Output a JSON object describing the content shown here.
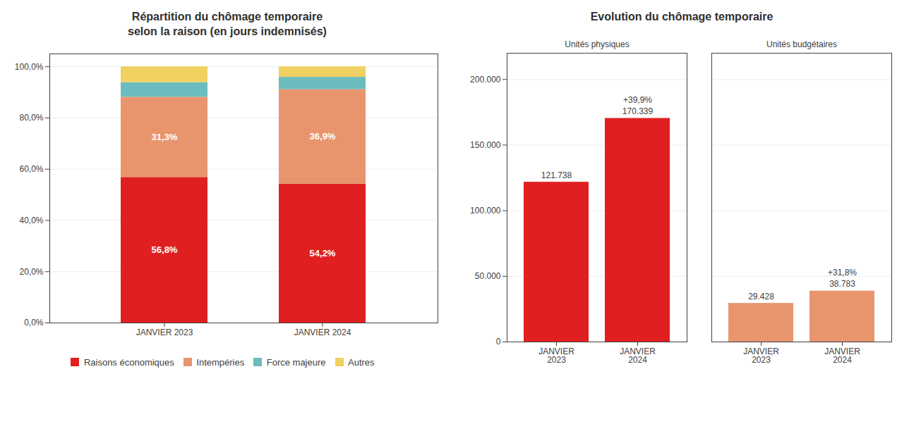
{
  "chart_data": [
    {
      "type": "bar",
      "stacked": true,
      "title": "Répartition du chômage temporaire\nselon la raison (en jours indemnisés)",
      "categories": [
        "JANVIER 2023",
        "JANVIER 2024"
      ],
      "series": [
        {
          "name": "Raisons économiques",
          "color": "#e02020",
          "values": [
            56.8,
            54.2
          ],
          "value_labels": [
            "56,8%",
            "54,2%"
          ]
        },
        {
          "name": "Intempéries",
          "color": "#e8956d",
          "values": [
            31.3,
            36.9
          ],
          "value_labels": [
            "31,3%",
            "36,9%"
          ]
        },
        {
          "name": "Force majeure",
          "color": "#6bbcbc",
          "values": [
            5.7,
            4.8
          ]
        },
        {
          "name": "Autres",
          "color": "#f0d060",
          "values": [
            6.2,
            4.1
          ]
        }
      ],
      "ylim": [
        0,
        105
      ],
      "yticks": [
        {
          "value": 0,
          "label": "0,0%"
        },
        {
          "value": 20,
          "label": "20,0%"
        },
        {
          "value": 40,
          "label": "40,0%"
        },
        {
          "value": 60,
          "label": "60,0%"
        },
        {
          "value": 80,
          "label": "80,0%"
        },
        {
          "value": 100,
          "label": "100,0%"
        }
      ],
      "grid": true,
      "legend": "bottom",
      "data_labels": true
    },
    {
      "type": "bar",
      "title": "Evolution du chômage temporaire",
      "categories": [
        "JANVIER\n2023",
        "JANVIER\n2024"
      ],
      "series": [
        {
          "name": "Unités physiques",
          "color": "#e02020",
          "values": [
            121738,
            170339
          ],
          "value_labels": [
            "121.738",
            "170.339"
          ]
        },
        {
          "name": "Unités budgétaires",
          "color": "#e8956d",
          "values": [
            29428,
            38783
          ],
          "value_labels": [
            "29.428",
            "38.783"
          ]
        }
      ],
      "annotations": [
        {
          "text": "+39,9%",
          "series": "Unités physiques",
          "category": "JANVIER\n2024"
        },
        {
          "text": "+31,8%",
          "series": "Unités budgétaires",
          "category": "JANVIER\n2024"
        }
      ],
      "ylim": [
        0,
        220000
      ],
      "yticks": [
        0,
        {
          "value": 50000,
          "label": "50.000"
        },
        {
          "value": 100000,
          "label": "100.000"
        },
        {
          "value": 150000,
          "label": "150.000"
        },
        {
          "value": 200000,
          "label": "200.000"
        }
      ],
      "grid": true,
      "data_labels": true
    }
  ]
}
